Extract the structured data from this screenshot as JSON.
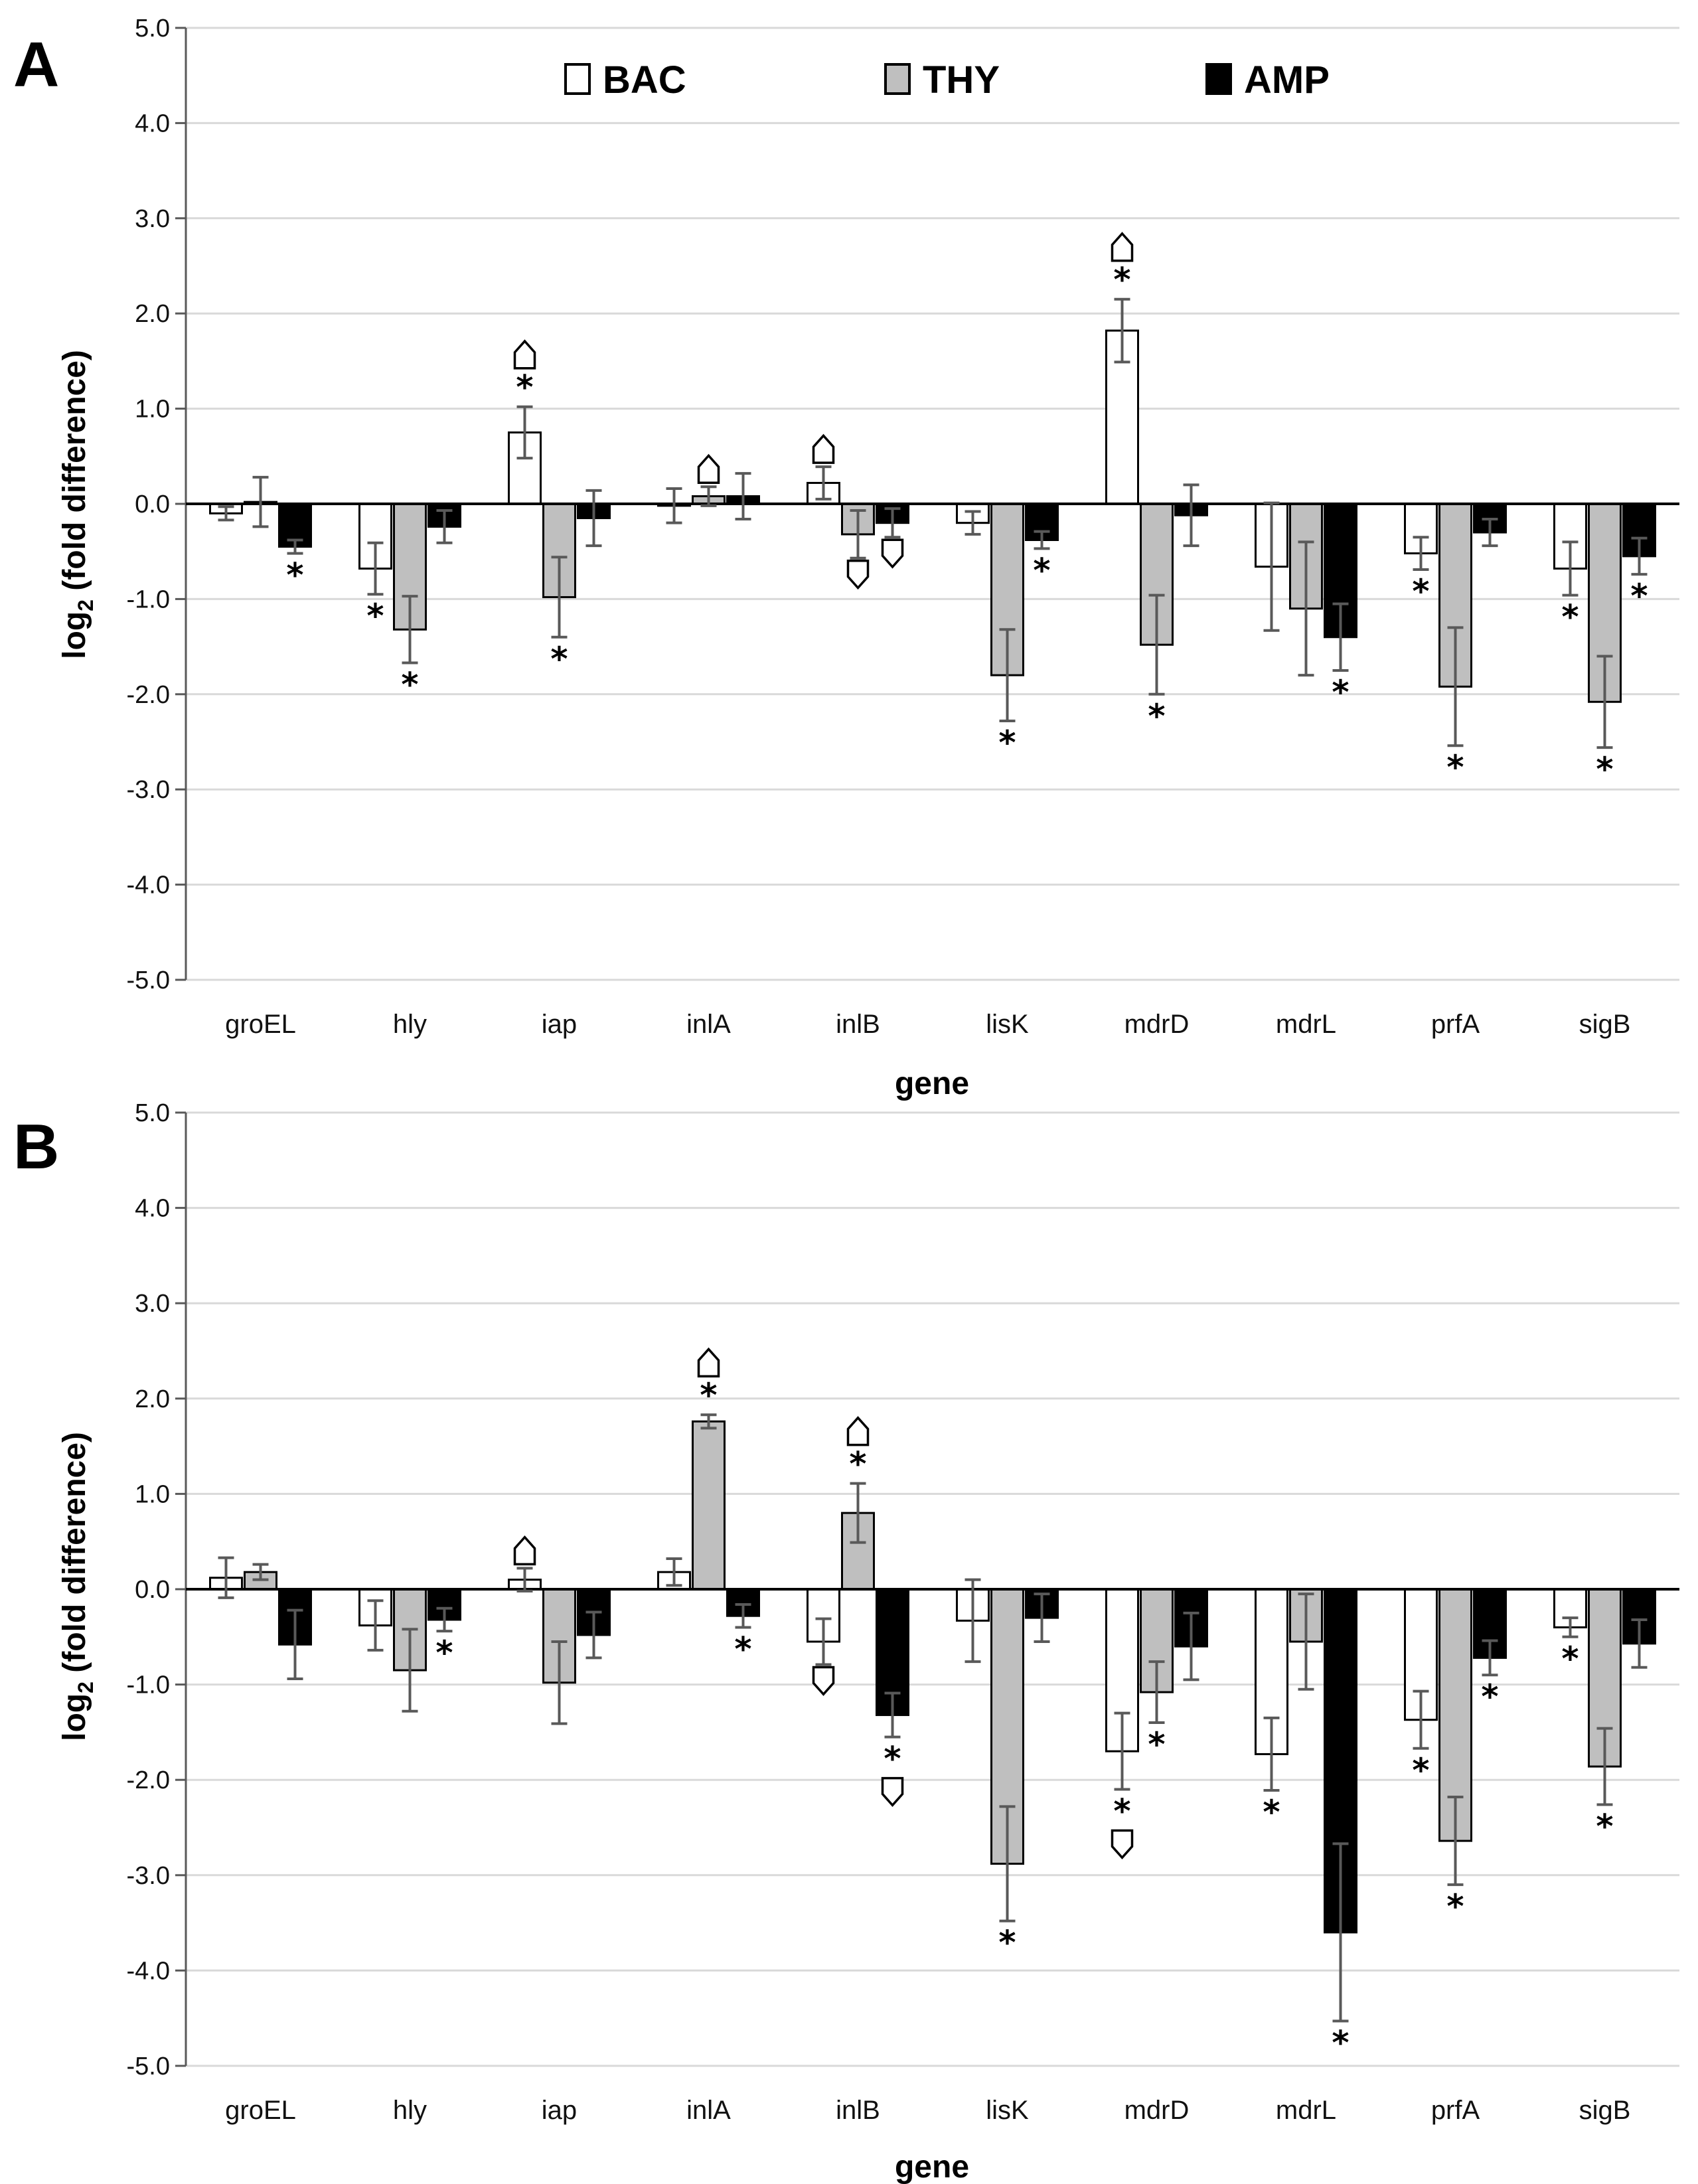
{
  "legend": {
    "entries": [
      {
        "name": "BAC",
        "color": "#ffffff"
      },
      {
        "name": "THY",
        "color": "#bfbfbf"
      },
      {
        "name": "AMP",
        "color": "#000000"
      }
    ]
  },
  "chart_data": [
    {
      "panel": "A",
      "type": "bar",
      "xlabel": "gene",
      "ylabel_main": "log",
      "ylabel_sub": "2",
      "ylabel_rest": " (fold difference)",
      "ylim": [
        -5,
        5
      ],
      "yticks": [
        "-5.0",
        "-4.0",
        "-3.0",
        "-2.0",
        "-1.0",
        "0.0",
        "1.0",
        "2.0",
        "3.0",
        "4.0",
        "5.0"
      ],
      "categories": [
        "groEL",
        "hly",
        "iap",
        "inlA",
        "inlB",
        "lisK",
        "mdrD",
        "mdrL",
        "prfA",
        "sigB"
      ],
      "series": [
        {
          "name": "BAC",
          "color": "#ffffff",
          "values": [
            -0.1,
            -0.68,
            0.75,
            -0.02,
            0.22,
            -0.2,
            1.82,
            -0.66,
            -0.52,
            -0.68
          ],
          "errors": [
            0.07,
            0.27,
            0.27,
            0.18,
            0.17,
            0.12,
            0.33,
            0.67,
            0.17,
            0.28
          ],
          "stars": [
            false,
            true,
            true,
            false,
            false,
            false,
            true,
            false,
            true,
            true
          ],
          "marks": [
            "",
            "",
            "up",
            "",
            "up",
            "",
            "up",
            "",
            "",
            ""
          ]
        },
        {
          "name": "THY",
          "color": "#bfbfbf",
          "values": [
            0.02,
            -1.32,
            -0.98,
            0.08,
            -0.32,
            -1.8,
            -1.48,
            -1.1,
            -1.92,
            -2.08
          ],
          "errors": [
            0.26,
            0.35,
            0.42,
            0.1,
            0.25,
            0.48,
            0.52,
            0.7,
            0.62,
            0.48
          ],
          "stars": [
            false,
            true,
            true,
            false,
            false,
            true,
            true,
            false,
            true,
            true
          ],
          "marks": [
            "",
            "",
            "",
            "up",
            "down",
            "",
            "",
            "",
            "",
            ""
          ]
        },
        {
          "name": "AMP",
          "color": "#000000",
          "values": [
            -0.45,
            -0.24,
            -0.15,
            0.08,
            -0.2,
            -0.38,
            -0.12,
            -1.4,
            -0.3,
            -0.55
          ],
          "errors": [
            0.07,
            0.17,
            0.29,
            0.24,
            0.15,
            0.09,
            0.32,
            0.35,
            0.14,
            0.19
          ],
          "stars": [
            true,
            false,
            false,
            false,
            false,
            true,
            false,
            true,
            false,
            true
          ],
          "marks": [
            "",
            "",
            "",
            "",
            "down",
            "",
            "",
            "",
            "",
            ""
          ]
        }
      ]
    },
    {
      "panel": "B",
      "type": "bar",
      "xlabel": "gene",
      "ylabel_main": "log",
      "ylabel_sub": "2",
      "ylabel_rest": " (fold difference)",
      "ylim": [
        -5,
        5
      ],
      "yticks": [
        "-5.0",
        "-4.0",
        "-3.0",
        "-2.0",
        "-1.0",
        "0.0",
        "1.0",
        "2.0",
        "3.0",
        "4.0",
        "5.0"
      ],
      "categories": [
        "groEL",
        "hly",
        "iap",
        "inlA",
        "inlB",
        "lisK",
        "mdrD",
        "mdrL",
        "prfA",
        "sigB"
      ],
      "series": [
        {
          "name": "BAC",
          "color": "#ffffff",
          "values": [
            0.12,
            -0.38,
            0.1,
            0.18,
            -0.55,
            -0.33,
            -1.7,
            -1.73,
            -1.37,
            -0.4
          ],
          "errors": [
            0.21,
            0.26,
            0.12,
            0.14,
            0.24,
            0.43,
            0.4,
            0.38,
            0.3,
            0.1
          ],
          "stars": [
            false,
            false,
            false,
            false,
            false,
            false,
            true,
            true,
            true,
            true
          ],
          "marks": [
            "",
            "",
            "up",
            "",
            "down",
            "",
            "down",
            "",
            "",
            ""
          ]
        },
        {
          "name": "THY",
          "color": "#bfbfbf",
          "values": [
            0.18,
            -0.85,
            -0.98,
            1.76,
            0.8,
            -2.88,
            -1.08,
            -0.55,
            -2.64,
            -1.86
          ],
          "errors": [
            0.08,
            0.43,
            0.43,
            0.07,
            0.31,
            0.6,
            0.32,
            0.5,
            0.46,
            0.4
          ],
          "stars": [
            false,
            false,
            false,
            true,
            true,
            true,
            true,
            false,
            true,
            true
          ],
          "marks": [
            "",
            "",
            "",
            "up",
            "up",
            "",
            "",
            "",
            "",
            ""
          ]
        },
        {
          "name": "AMP",
          "color": "#000000",
          "values": [
            -0.58,
            -0.32,
            -0.48,
            -0.28,
            -1.32,
            -0.3,
            -0.6,
            -3.6,
            -0.72,
            -0.57
          ],
          "errors": [
            0.36,
            0.12,
            0.24,
            0.12,
            0.23,
            0.25,
            0.35,
            0.93,
            0.18,
            0.25
          ],
          "stars": [
            false,
            true,
            false,
            true,
            true,
            false,
            false,
            true,
            true,
            false
          ],
          "marks": [
            "",
            "",
            "",
            "",
            "down",
            "",
            "",
            "",
            "",
            ""
          ]
        }
      ]
    }
  ]
}
